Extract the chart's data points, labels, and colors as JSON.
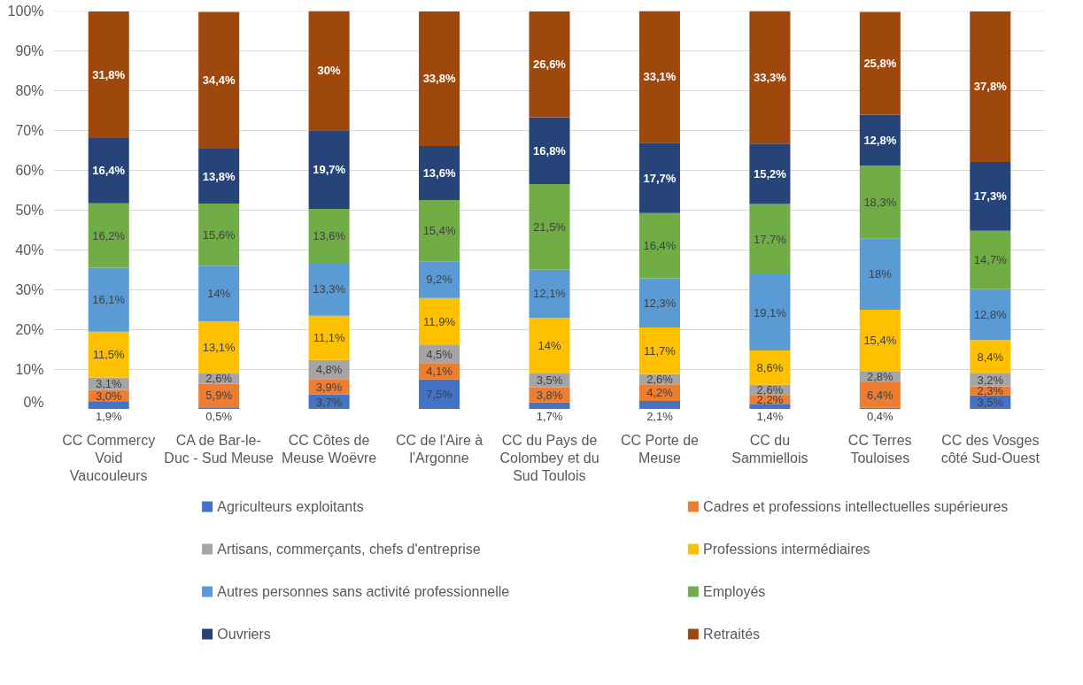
{
  "chart_data": {
    "type": "bar",
    "stacked": true,
    "categories": [
      "CC Commercy Void Vaucouleurs",
      "CA de Bar-le-Duc - Sud Meuse",
      "CC Côtes de Meuse Woëvre",
      "CC de l'Aire à l'Argonne",
      "CC du Pays de Colombey et du Sud Toulois",
      "CC Porte de Meuse",
      "CC du Sammiellois",
      "CC Terres Touloises",
      "CC des Vosges côté Sud-Ouest"
    ],
    "series": [
      {
        "name": "Agriculteurs exploitants",
        "color": "#4472c4",
        "values": [
          1.9,
          0.5,
          3.7,
          7.5,
          1.7,
          2.1,
          1.4,
          0.4,
          3.5
        ],
        "value_labels": [
          "1,9%",
          "0,5%",
          "3,7%",
          "7,5%",
          "1,7%",
          "2,1%",
          "1,4%",
          "0,4%",
          "3,5%"
        ]
      },
      {
        "name": "Cadres et professions intellectuelles supérieures",
        "color": "#ed7d31",
        "values": [
          3.0,
          5.9,
          3.9,
          4.1,
          3.8,
          4.2,
          2.2,
          6.4,
          2.3
        ],
        "value_labels": [
          "3,0%",
          "5,9%",
          "3,9%",
          "4,1%",
          "3,8%",
          "4,2%",
          "2,2%",
          "6,4%",
          "2,3%"
        ]
      },
      {
        "name": "Artisans, commerçants, chefs d'entreprise",
        "color": "#a5a5a5",
        "values": [
          3.1,
          2.6,
          4.8,
          4.5,
          3.5,
          2.6,
          2.6,
          2.8,
          3.2
        ],
        "value_labels": [
          "3,1%",
          "2,6%",
          "4,8%",
          "4,5%",
          "3,5%",
          "2,6%",
          "2,6%",
          "2,8%",
          "3,2%"
        ]
      },
      {
        "name": "Professions intermédiaires",
        "color": "#ffc000",
        "values": [
          11.5,
          13.1,
          11.1,
          11.9,
          14,
          11.7,
          8.6,
          15.4,
          8.4
        ],
        "value_labels": [
          "11,5%",
          "13,1%",
          "11,1%",
          "11,9%",
          "14%",
          "11,7%",
          "8,6%",
          "15,4%",
          "8,4%"
        ]
      },
      {
        "name": "Autres personnes sans activité professionnelle",
        "color": "#5b9bd5",
        "values": [
          16.1,
          14,
          13.3,
          9.2,
          12.1,
          12.3,
          19.1,
          18,
          12.8
        ],
        "value_labels": [
          "16,1%",
          "14%",
          "13,3%",
          "9,2%",
          "12,1%",
          "12,3%",
          "19,1%",
          "18%",
          "12,8%"
        ]
      },
      {
        "name": "Employés",
        "color": "#70ad47",
        "values": [
          16.2,
          15.6,
          13.6,
          15.4,
          21.5,
          16.4,
          17.7,
          18.3,
          14.7
        ],
        "value_labels": [
          "16,2%",
          "15,6%",
          "13,6%",
          "15,4%",
          "21,5%",
          "16,4%",
          "17,7%",
          "18,3%",
          "14,7%"
        ]
      },
      {
        "name": "Ouvriers",
        "color": "#264478",
        "values": [
          16.4,
          13.8,
          19.7,
          13.6,
          16.8,
          17.7,
          15.2,
          12.8,
          17.3
        ],
        "value_labels": [
          "16,4%",
          "13,8%",
          "19,7%",
          "13,6%",
          "16,8%",
          "17,7%",
          "15,2%",
          "12,8%",
          "17,3%"
        ]
      },
      {
        "name": "Retraités",
        "color": "#9e480e",
        "values": [
          31.8,
          34.4,
          30,
          33.8,
          26.6,
          33.1,
          33.3,
          25.8,
          37.8
        ],
        "value_labels": [
          "31,8%",
          "34,4%",
          "30%",
          "33,8%",
          "26,6%",
          "33,1%",
          "33,3%",
          "25,8%",
          "37,8%"
        ]
      }
    ],
    "ylim": [
      0,
      100.1
    ],
    "yticks": [
      {
        "value": 0,
        "label": "0%"
      },
      {
        "value": 10,
        "label": "10%"
      },
      {
        "value": 20,
        "label": "20%"
      },
      {
        "value": 30,
        "label": "30%"
      },
      {
        "value": 40,
        "label": "40%"
      },
      {
        "value": 50,
        "label": "50%"
      },
      {
        "value": 60,
        "label": "60%"
      },
      {
        "value": 70,
        "label": "70%"
      },
      {
        "value": 80,
        "label": "80%"
      },
      {
        "value": 90,
        "label": "90%"
      },
      {
        "value": 100,
        "label": "100%"
      }
    ],
    "grid": "y",
    "legend": "bottom"
  }
}
